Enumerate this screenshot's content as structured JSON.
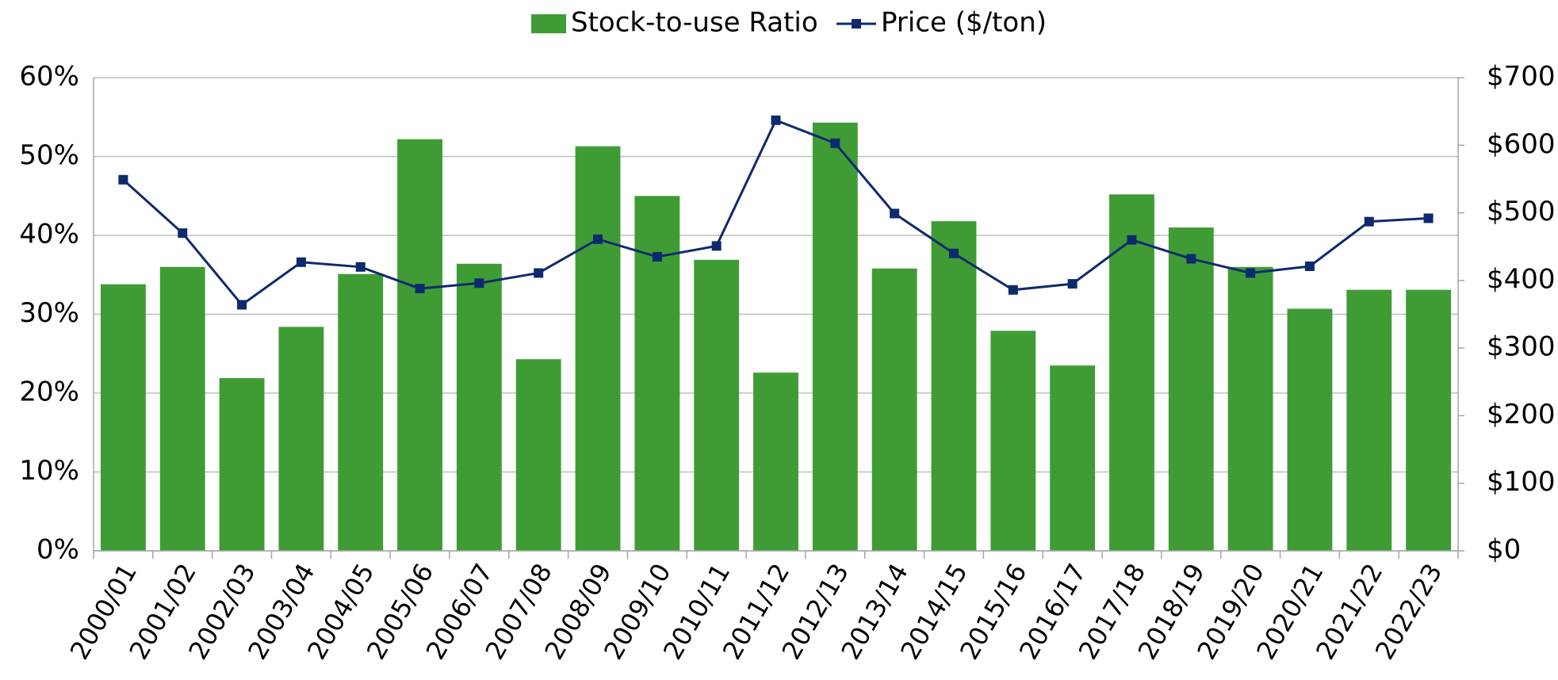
{
  "chart_data": {
    "type": "bar",
    "categories": [
      "2000/01",
      "2001/02",
      "2002/03",
      "2003/04",
      "2004/05",
      "2005/06",
      "2006/07",
      "2007/08",
      "2008/09",
      "2009/10",
      "2010/11",
      "2011/12",
      "2012/13",
      "2013/14",
      "2014/15",
      "2015/16",
      "2016/17",
      "2017/18",
      "2018/19",
      "2019/20",
      "2020/21",
      "2021/22",
      "2022/23"
    ],
    "series": [
      {
        "name": "Stock-to-use Ratio",
        "type": "bar",
        "color": "#3f9c35",
        "values": [
          33.8,
          36.0,
          21.9,
          28.4,
          35.1,
          52.2,
          36.4,
          24.3,
          51.3,
          45.0,
          36.9,
          22.6,
          54.3,
          35.8,
          41.8,
          27.9,
          23.5,
          45.2,
          41.0,
          36.0,
          30.7,
          33.1,
          33.1
        ]
      },
      {
        "name": "Price ($/ton)",
        "type": "line",
        "axis": "y2",
        "color": "#0e2a6e",
        "values": [
          549,
          470,
          364,
          427,
          420,
          388,
          396,
          411,
          461,
          435,
          451,
          637,
          603,
          499,
          440,
          386,
          395,
          460,
          432,
          411,
          421,
          487,
          492
        ]
      }
    ],
    "ylim": [
      0,
      60
    ],
    "yticks": [
      {
        "value": 0,
        "label": "0%"
      },
      {
        "value": 10,
        "label": "10%"
      },
      {
        "value": 20,
        "label": "20%"
      },
      {
        "value": 30,
        "label": "30%"
      },
      {
        "value": 40,
        "label": "40%"
      },
      {
        "value": 50,
        "label": "50%"
      },
      {
        "value": 60,
        "label": "60%"
      }
    ],
    "y2lim": [
      0,
      700
    ],
    "y2ticks": [
      {
        "value": 0,
        "label": "$0"
      },
      {
        "value": 100,
        "label": "$100"
      },
      {
        "value": 200,
        "label": "$200"
      },
      {
        "value": 300,
        "label": "$300"
      },
      {
        "value": 400,
        "label": "$400"
      },
      {
        "value": 500,
        "label": "$500"
      },
      {
        "value": 600,
        "label": "$600"
      },
      {
        "value": 700,
        "label": "$700"
      }
    ],
    "grid": true,
    "legend": "top"
  }
}
